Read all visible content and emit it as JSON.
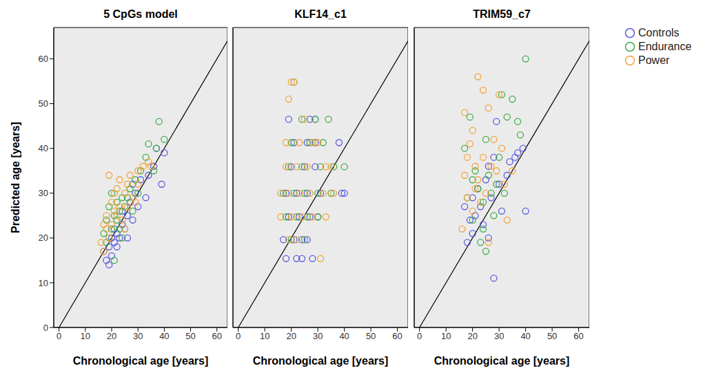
{
  "chart_data": [
    {
      "type": "scatter",
      "title": "5 CpGs model",
      "x_label": "Chronological age [years]",
      "y_label": "Predicted age [years]",
      "xlim": [
        -2,
        64
      ],
      "ylim": [
        0,
        67
      ],
      "xticks": [
        0,
        10,
        20,
        30,
        40,
        50,
        60
      ],
      "yticks": [
        0,
        10,
        20,
        30,
        40,
        50,
        60
      ],
      "grid": false,
      "marker": "open_circle",
      "reference_line": {
        "x": [
          0,
          64
        ],
        "y": [
          0,
          64
        ]
      },
      "series": [
        {
          "name": "Controls",
          "color": "#5b5be0",
          "x": [
            17,
            18,
            19,
            19,
            20,
            20,
            21,
            21,
            22,
            22,
            23,
            24,
            24,
            25,
            26,
            27,
            28,
            29,
            30,
            31,
            33,
            34,
            36,
            37,
            39,
            40,
            28,
            26
          ],
          "values": [
            17,
            15,
            14,
            18,
            16,
            20,
            19,
            22,
            18,
            21,
            20,
            23,
            26,
            22,
            25,
            28,
            24,
            30,
            27,
            33,
            29,
            34,
            36,
            40,
            32,
            39,
            32,
            20
          ]
        },
        {
          "name": "Endurance",
          "color": "#3fae49",
          "x": [
            17,
            18,
            18,
            19,
            20,
            20,
            21,
            21,
            22,
            22,
            23,
            24,
            25,
            26,
            27,
            28,
            29,
            30,
            31,
            33,
            34,
            36,
            37,
            38,
            40,
            24,
            19,
            23
          ],
          "values": [
            21,
            19,
            24,
            27,
            30,
            22,
            15,
            25,
            24,
            28,
            26,
            20,
            27,
            29,
            31,
            26,
            33,
            30,
            35,
            38,
            41,
            35,
            40,
            46,
            42,
            29,
            20,
            22
          ]
        },
        {
          "name": "Power",
          "color": "#f2a33a",
          "x": [
            16,
            17,
            17,
            18,
            18,
            19,
            19,
            20,
            20,
            21,
            21,
            22,
            22,
            23,
            23,
            24,
            25,
            26,
            27,
            28,
            29,
            30,
            32,
            34,
            35,
            30,
            26,
            25
          ],
          "values": [
            19,
            23,
            17,
            22,
            25,
            34,
            20,
            28,
            23,
            30,
            26,
            25,
            31,
            27,
            33,
            24,
            30,
            27,
            34,
            29,
            28,
            32,
            36,
            37,
            36,
            35,
            32,
            22
          ]
        }
      ]
    },
    {
      "type": "scatter",
      "title": "KLF14_c1",
      "x_label": "Chronological age [years]",
      "xlim": [
        -2,
        64
      ],
      "ylim": [
        0,
        67
      ],
      "xticks": [
        0,
        10,
        20,
        30,
        40,
        50,
        60
      ],
      "yticks": [
        0,
        10,
        20,
        30,
        40,
        50,
        60
      ],
      "grid": false,
      "tick_labels": "x",
      "marker": "open_circle",
      "reference_line": {
        "x": [
          0,
          64
        ],
        "y": [
          0,
          64
        ]
      },
      "series": [
        {
          "name": "Controls",
          "color": "#5b5be0",
          "x": [
            18,
            22,
            24,
            28,
            17,
            21,
            24,
            26,
            19,
            23,
            27,
            30,
            18,
            22,
            26,
            31,
            39,
            40,
            20,
            25,
            29,
            21,
            26,
            29,
            38,
            19,
            27,
            29
          ],
          "values": [
            15.4,
            15.4,
            15.4,
            15.4,
            19.6,
            19.6,
            19.6,
            19.6,
            24.7,
            24.7,
            24.7,
            24.7,
            30,
            30,
            30,
            30,
            30,
            30,
            35.9,
            35.9,
            35.9,
            41.3,
            41.3,
            41.3,
            41.3,
            46.5,
            46.5,
            46.5
          ]
        },
        {
          "name": "Endurance",
          "color": "#3fae49",
          "x": [
            20,
            25,
            18,
            22,
            26,
            30,
            17,
            21,
            25,
            30,
            35,
            19,
            24,
            31,
            36,
            40,
            20,
            27,
            32,
            24,
            29,
            34,
            21
          ],
          "values": [
            19.6,
            19.6,
            24.7,
            24.7,
            24.7,
            24.7,
            30,
            30,
            30,
            30,
            30,
            35.9,
            35.9,
            35.9,
            35.9,
            35.9,
            41.3,
            41.3,
            41.3,
            46.5,
            46.5,
            46.5,
            54.8
          ]
        },
        {
          "name": "Power",
          "color": "#f2a33a",
          "x": [
            31,
            19,
            22,
            16,
            20,
            24,
            28,
            33,
            16,
            19,
            23,
            27,
            32,
            36,
            18,
            22,
            26,
            33,
            35,
            18,
            23,
            28,
            30,
            25,
            19,
            20,
            21
          ],
          "values": [
            15.4,
            19.6,
            19.6,
            24.7,
            24.7,
            24.7,
            24.7,
            24.7,
            30,
            30,
            30,
            30,
            30,
            30,
            35.9,
            35.9,
            35.9,
            35.9,
            35.9,
            41.3,
            41.3,
            41.3,
            41.3,
            46.5,
            51,
            54.8,
            54.8
          ]
        }
      ]
    },
    {
      "type": "scatter",
      "title": "TRIM59_c7",
      "x_label": "Chronological age [years]",
      "xlim": [
        -2,
        64
      ],
      "ylim": [
        0,
        67
      ],
      "xticks": [
        0,
        10,
        20,
        30,
        40,
        50,
        60
      ],
      "yticks": [
        0,
        10,
        20,
        30,
        40,
        50,
        60
      ],
      "grid": false,
      "tick_labels": "x",
      "marker": "open_circle",
      "legend": "right",
      "reference_line": {
        "x": [
          0,
          64
        ],
        "y": [
          0,
          64
        ]
      },
      "series": [
        {
          "name": "Controls",
          "color": "#5b5be0",
          "x": [
            17,
            18,
            19,
            20,
            20,
            21,
            22,
            23,
            24,
            25,
            26,
            27,
            28,
            28,
            29,
            30,
            31,
            33,
            34,
            36,
            37,
            39,
            40,
            26
          ],
          "values": [
            27,
            19,
            24,
            21,
            29,
            25,
            31,
            27,
            23,
            33,
            36,
            29,
            11,
            38,
            46,
            32,
            26,
            34,
            37,
            38,
            39,
            40,
            26,
            20
          ]
        },
        {
          "name": "Endurance",
          "color": "#3fae49",
          "x": [
            17,
            18,
            19,
            20,
            20,
            21,
            22,
            23,
            24,
            25,
            25,
            26,
            27,
            28,
            29,
            30,
            31,
            32,
            33,
            35,
            37,
            38,
            40,
            24
          ],
          "values": [
            40,
            29,
            47,
            33,
            24,
            35,
            31,
            19,
            28,
            17,
            42,
            34,
            30,
            25,
            32,
            38,
            52,
            30,
            47,
            51,
            46,
            43,
            60,
            22
          ]
        },
        {
          "name": "Power",
          "color": "#f2a33a",
          "x": [
            16,
            17,
            17,
            18,
            19,
            20,
            20,
            21,
            21,
            22,
            22,
            23,
            24,
            24,
            25,
            26,
            27,
            28,
            29,
            30,
            31,
            32,
            33,
            35,
            18,
            26
          ],
          "values": [
            22,
            34,
            48,
            29,
            41,
            44,
            26,
            36,
            31,
            56,
            33,
            28,
            53,
            38,
            30,
            49,
            36,
            42,
            35,
            52,
            40,
            32,
            24,
            35,
            38,
            19
          ]
        }
      ]
    }
  ]
}
